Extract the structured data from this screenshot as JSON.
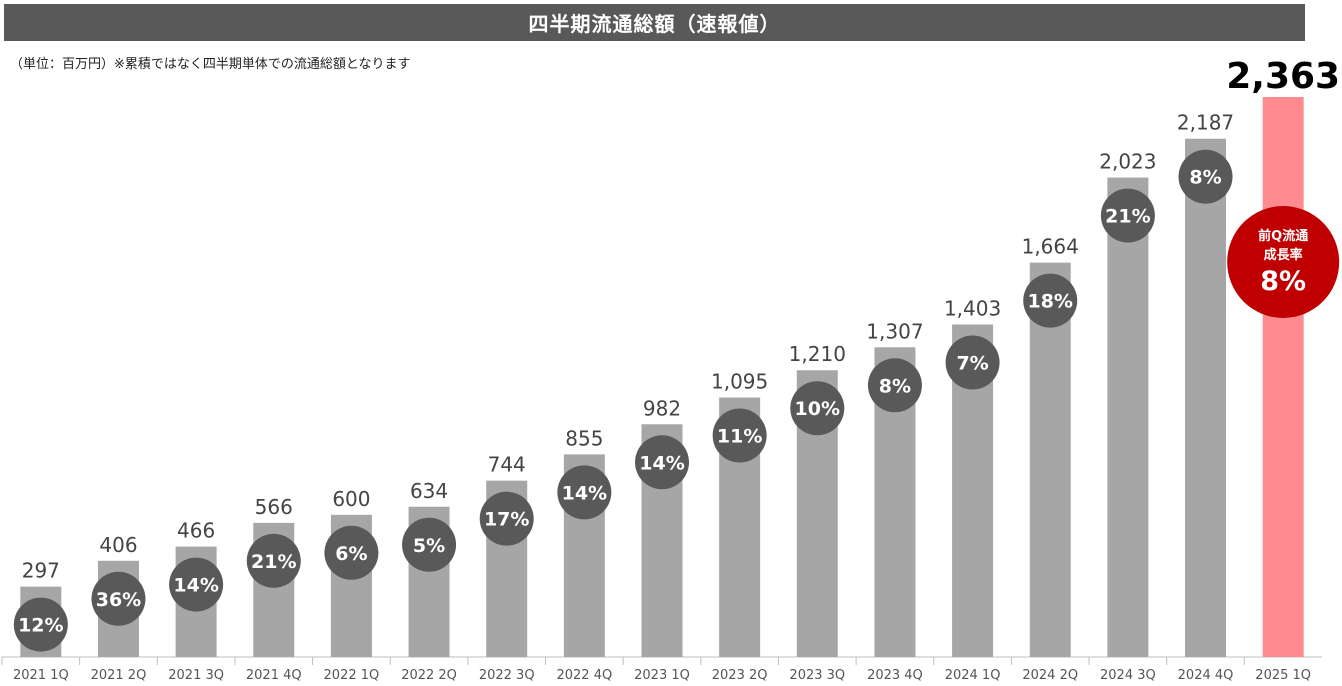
{
  "header": {
    "title": "四半期流通総額（速報値）",
    "note": "（単位：百万円）※累積ではなく四半期単体での流通総額となります"
  },
  "colors": {
    "bar": "#a6a6a6",
    "highlight_bar": "#ff8a8f",
    "circle": "#595959",
    "badge": "#c00000",
    "title_bg": "#595959"
  },
  "badge": {
    "line1": "前Q流通",
    "line2": "成長率",
    "value": "8%"
  },
  "chart_data": {
    "type": "bar",
    "categories": [
      "2021 1Q",
      "2021 2Q",
      "2021 3Q",
      "2021 4Q",
      "2022 1Q",
      "2022 2Q",
      "2022 3Q",
      "2022 4Q",
      "2023 1Q",
      "2023 2Q",
      "2023 3Q",
      "2023 4Q",
      "2024 1Q",
      "2024 2Q",
      "2024 3Q",
      "2024 4Q",
      "2025 1Q"
    ],
    "values": [
      297,
      406,
      466,
      566,
      600,
      634,
      744,
      855,
      982,
      1095,
      1210,
      1307,
      1403,
      1664,
      2023,
      2187,
      2363
    ],
    "value_labels": [
      "297",
      "406",
      "466",
      "566",
      "600",
      "634",
      "744",
      "855",
      "982",
      "1,095",
      "1,210",
      "1,307",
      "1,403",
      "1,664",
      "2,023",
      "2,187",
      "2,363"
    ],
    "growth_labels": [
      "12%",
      "36%",
      "14%",
      "21%",
      "6%",
      "5%",
      "17%",
      "14%",
      "14%",
      "11%",
      "10%",
      "8%",
      "7%",
      "18%",
      "21%",
      "8%",
      ""
    ],
    "highlight_index": 16,
    "ylim": [
      0,
      2363
    ]
  }
}
